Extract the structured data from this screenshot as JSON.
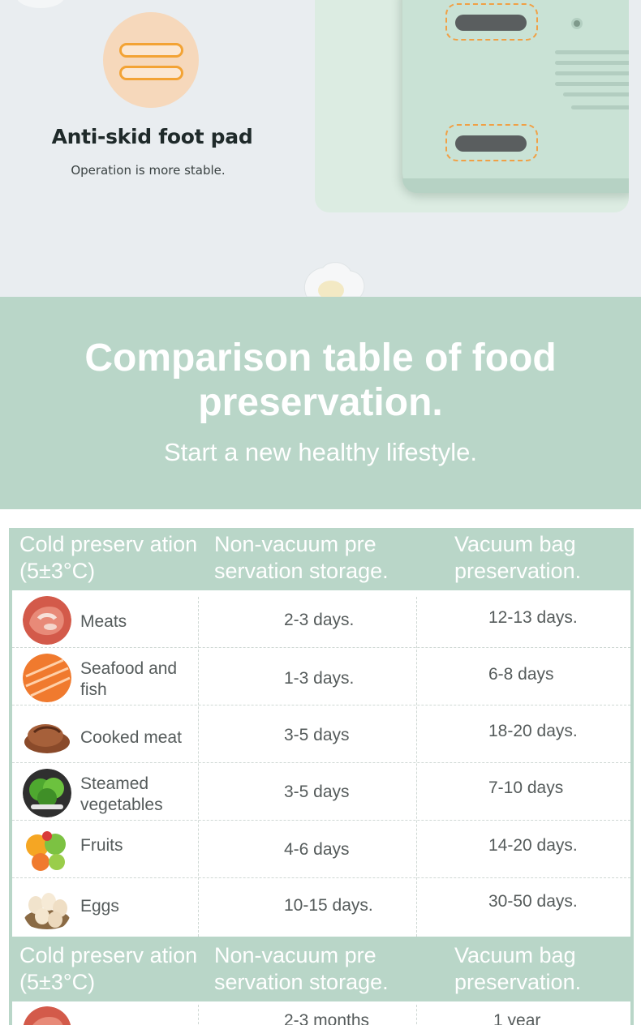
{
  "feature": {
    "title": "Anti-skid foot pad",
    "subtitle": "Operation is more stable."
  },
  "heading": {
    "title": "Comparison table of food preservation.",
    "subtitle": "Start a new healthy lifestyle."
  },
  "table": {
    "headers": [
      "Cold preserv ation (5±3°C)",
      "Non-vacuum pre servation storage.",
      "Vacuum bag preservation."
    ],
    "rows": [
      {
        "food": "Meats",
        "icon": "meat-icon",
        "non_vacuum": "2-3 days.",
        "vacuum": "12-13 days."
      },
      {
        "food": "Seafood and fish",
        "icon": "salmon-icon",
        "non_vacuum": "1-3 days.",
        "vacuum": "6-8 days"
      },
      {
        "food": "Cooked meat",
        "icon": "cooked-meat-icon",
        "non_vacuum": "3-5 days",
        "vacuum": "18-20 days."
      },
      {
        "food": "Steamed vegetables",
        "icon": "vegetables-icon",
        "non_vacuum": "3-5 days",
        "vacuum": "7-10 days"
      },
      {
        "food": "Fruits",
        "icon": "fruits-icon",
        "non_vacuum": "4-6 days",
        "vacuum": "14-20 days."
      },
      {
        "food": "Eggs",
        "icon": "eggs-icon",
        "non_vacuum": "10-15 days.",
        "vacuum": "30-50 days."
      }
    ],
    "second_headers": [
      "Cold preserv ation (5±3°C)",
      "Non-vacuum pre servation storage.",
      "Vacuum bag preservation."
    ],
    "second_first_row": {
      "non_vacuum": "2-3 months",
      "vacuum": "1 year"
    }
  },
  "colors": {
    "accent_green": "#b9d6c8",
    "badge_orange": "#f3a334",
    "text_dark": "#1f2a2a"
  }
}
